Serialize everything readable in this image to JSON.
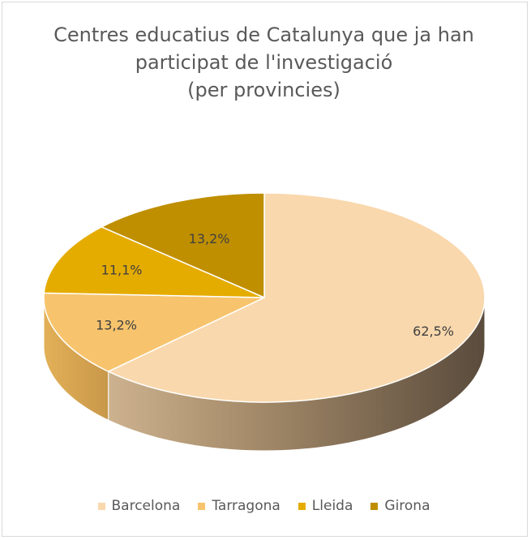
{
  "chart_data": {
    "type": "pie",
    "title_lines": [
      "Centres educatius de Catalunya que ja han",
      "participat de l'investigació",
      "(per provincies)"
    ],
    "categories": [
      "Barcelona",
      "Tarragona",
      "Lleida",
      "Girona"
    ],
    "values": [
      62.5,
      13.2,
      11.1,
      13.2
    ],
    "labels": [
      "62,5%",
      "13,2%",
      "11,1%",
      "13,2%"
    ],
    "colors": [
      "#f9d8ad",
      "#f7c46d",
      "#e5ac00",
      "#bf8f00"
    ],
    "legend_position": "bottom",
    "style": "3d"
  }
}
